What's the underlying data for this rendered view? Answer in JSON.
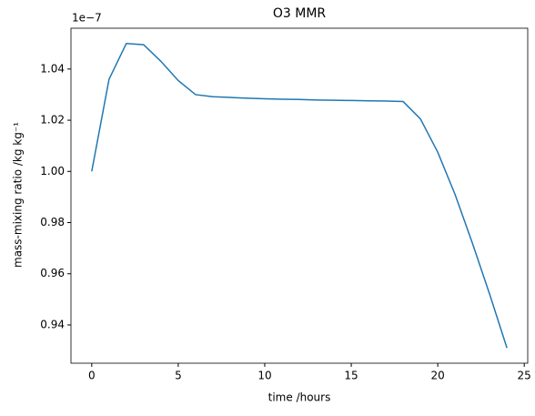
{
  "chart_data": {
    "type": "line",
    "title": "O3 MMR",
    "x_label": "time /hours",
    "y_label": "mass-mixing ratio /kg kg⁻¹",
    "y_offset_text": "1e−7",
    "x": [
      0,
      1,
      2,
      3,
      4,
      5,
      6,
      7,
      8,
      9,
      10,
      11,
      12,
      13,
      14,
      15,
      16,
      17,
      18,
      19,
      20,
      21,
      22,
      23,
      24
    ],
    "series": [
      {
        "color": "#1f77b4",
        "values": [
          1.0,
          1.036,
          1.05,
          1.0495,
          1.043,
          1.0355,
          1.03,
          1.0292,
          1.0289,
          1.0286,
          1.0284,
          1.0282,
          1.0281,
          1.0279,
          1.0278,
          1.0277,
          1.0276,
          1.0275,
          1.0273,
          1.0205,
          1.0075,
          0.991,
          0.972,
          0.952,
          0.931
        ]
      }
    ],
    "xlim": [
      -1.2,
      25.2
    ],
    "xticks": [
      0,
      5,
      10,
      15,
      20,
      25
    ],
    "ylim": [
      0.92505,
      1.05595
    ],
    "yticks": [
      0.94,
      0.96,
      0.98,
      {
        "value": 1,
        "label": "1.00"
      },
      1.02,
      1.04
    ]
  }
}
